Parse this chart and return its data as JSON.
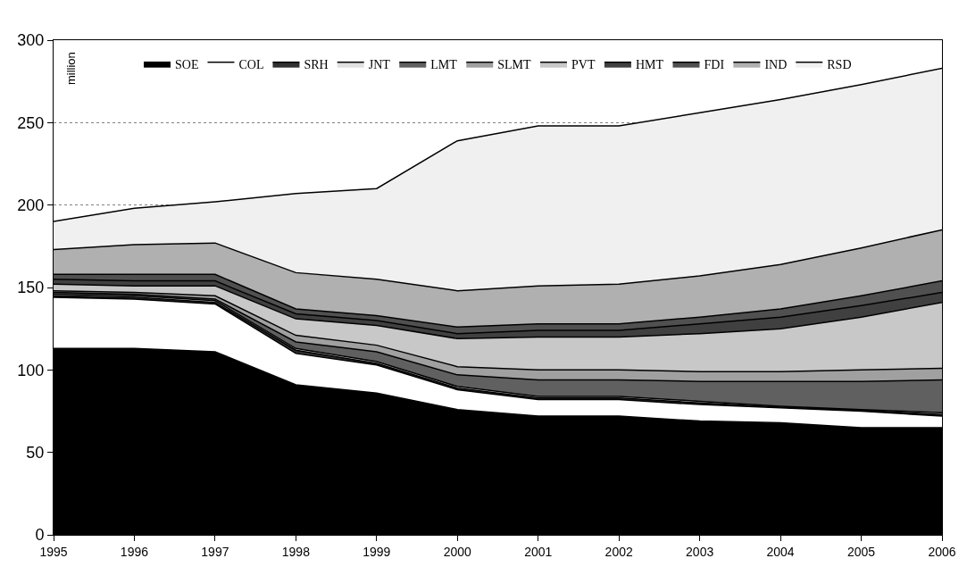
{
  "chart_data": {
    "type": "area",
    "stacked": true,
    "ylabel": "million",
    "x": [
      1995,
      1996,
      1997,
      1998,
      1999,
      2000,
      2001,
      2002,
      2003,
      2004,
      2005,
      2006
    ],
    "xlim": [
      1995,
      2006
    ],
    "xticks": [
      1995,
      1996,
      1997,
      1998,
      1999,
      2000,
      2001,
      2002,
      2003,
      2004,
      2005,
      2006
    ],
    "ylim": [
      0,
      300
    ],
    "yticks": [
      0,
      50,
      100,
      150,
      200,
      250,
      300
    ],
    "grid": "y",
    "legend": "top",
    "series": [
      {
        "name": "SOE",
        "color": "#000000",
        "values": [
          113,
          113,
          111,
          91,
          86,
          76,
          72,
          72,
          69,
          68,
          65,
          65
        ]
      },
      {
        "name": "COL",
        "color": "#ffffff",
        "values": [
          31,
          30,
          29,
          19,
          17,
          12,
          10,
          10,
          10,
          9,
          10,
          7
        ]
      },
      {
        "name": "SRH",
        "color": "#303030",
        "values": [
          1,
          1,
          1,
          2,
          1,
          1,
          1,
          1,
          1,
          0.5,
          0.5,
          1
        ]
      },
      {
        "name": "JNT",
        "color": "#e0e0e0",
        "values": [
          1,
          1,
          1,
          1,
          1,
          1,
          1,
          1,
          1,
          0.5,
          0.5,
          1
        ]
      },
      {
        "name": "LMT",
        "color": "#606060",
        "values": [
          1,
          1,
          1,
          4,
          6,
          7,
          10,
          10,
          12,
          15,
          17,
          20
        ]
      },
      {
        "name": "SLMT",
        "color": "#a0a0a0",
        "values": [
          1,
          1,
          2,
          4,
          4,
          5,
          6,
          6,
          6,
          6,
          7,
          7
        ]
      },
      {
        "name": "PVT",
        "color": "#c8c8c8",
        "values": [
          4,
          4,
          6,
          10,
          12,
          17,
          20,
          20,
          23,
          26,
          32,
          40
        ]
      },
      {
        "name": "HMT",
        "color": "#404040",
        "values": [
          3,
          3,
          3,
          3,
          3,
          3,
          4,
          4,
          6,
          7,
          7,
          6
        ]
      },
      {
        "name": "FDI",
        "color": "#505050",
        "values": [
          3,
          4,
          4,
          3,
          3,
          4,
          4,
          4,
          4,
          5,
          6,
          7
        ]
      },
      {
        "name": "IND",
        "color": "#b0b0b0",
        "values": [
          15,
          18,
          19,
          22,
          22,
          22,
          23,
          24,
          25,
          27,
          29,
          31
        ]
      },
      {
        "name": "RSD",
        "color": "#f0f0f0",
        "values": [
          17,
          22,
          25,
          48,
          55,
          91,
          97,
          96,
          99,
          100,
          99,
          98
        ]
      }
    ]
  }
}
